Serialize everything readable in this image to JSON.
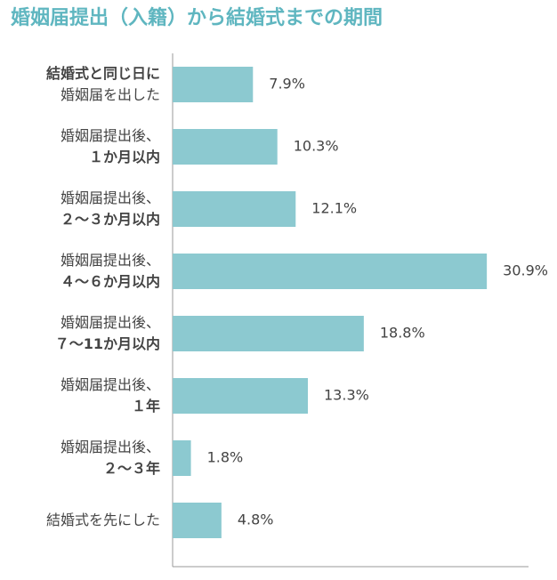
{
  "chart_data": {
    "type": "barh",
    "title": "婚姻届提出（入籍）から結婚式までの期間",
    "categories": [
      "結婚式と同じ日に\n婚姻届を出した",
      "婚姻届提出後、\n１か月以内",
      "婚姻届提出後、\n２～３か月以内",
      "婚姻届提出後、\n４～６か月以内",
      "婚姻届提出後、\n７～11か月以内",
      "婚姻届提出後、\n１年",
      "婚姻届提出後、\n２～３年",
      "結婚式を先にした"
    ],
    "values": [
      7.9,
      10.3,
      12.1,
      30.9,
      18.8,
      13.3,
      1.8,
      4.8
    ],
    "value_labels": [
      "7.9%",
      "10.3%",
      "12.1%",
      "30.9%",
      "18.8%",
      "13.3%",
      "1.8%",
      "4.8%"
    ],
    "color": "#8cc9d0",
    "xlim": [
      0,
      35
    ]
  }
}
